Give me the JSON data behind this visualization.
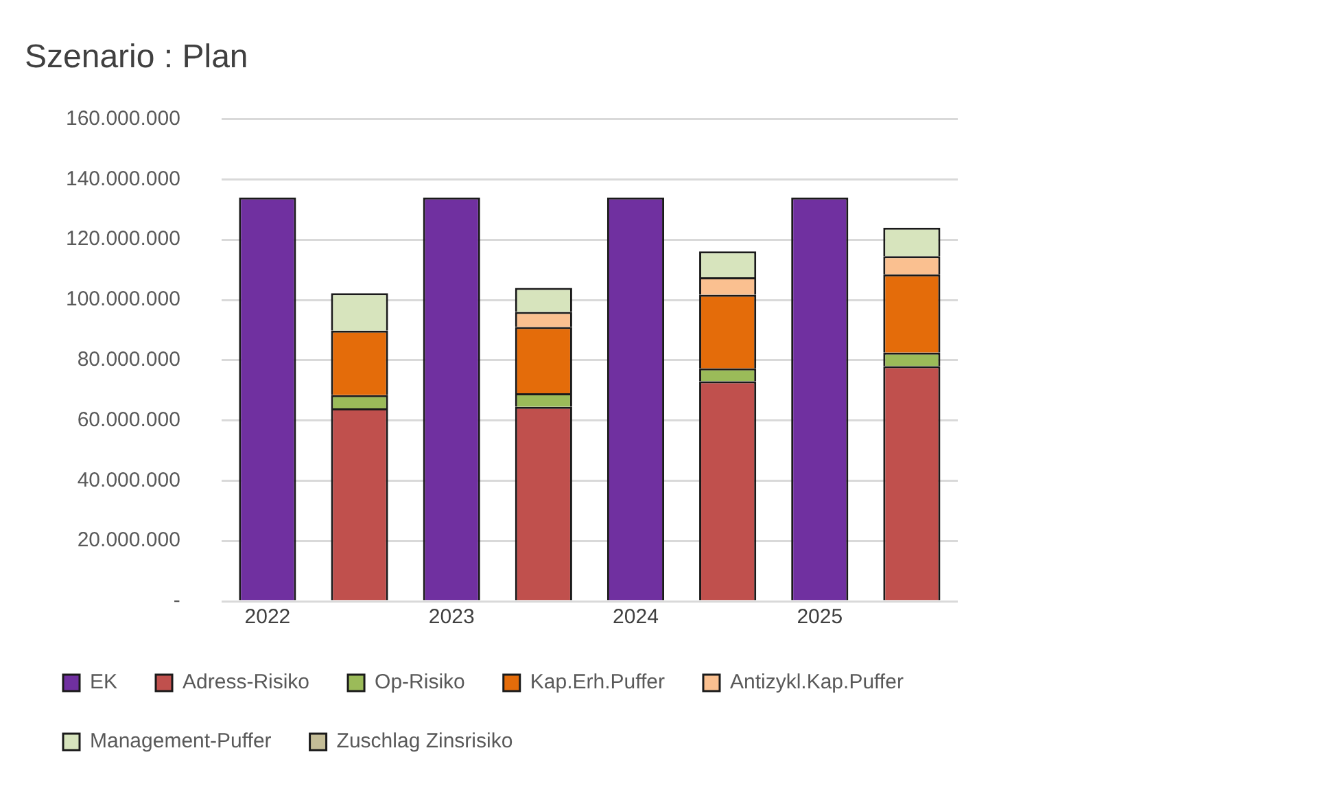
{
  "chart_data": {
    "type": "bar",
    "title": "Szenario : Plan",
    "categories": [
      "2022",
      null,
      "2023",
      null,
      "2024",
      null,
      "2025",
      null
    ],
    "stacked": true,
    "grid": "y",
    "legend": "bottom",
    "ylim": [
      0,
      160000000
    ],
    "yticks": [
      {
        "value": 0,
        "label": "-"
      },
      {
        "value": 20000000,
        "label": "20.000.000"
      },
      {
        "value": 40000000,
        "label": "40.000.000"
      },
      {
        "value": 60000000,
        "label": "60.000.000"
      },
      {
        "value": 80000000,
        "label": "80.000.000"
      },
      {
        "value": 100000000,
        "label": "100.000.000"
      },
      {
        "value": 120000000,
        "label": "120.000.000"
      },
      {
        "value": 140000000,
        "label": "140.000.000"
      },
      {
        "value": 160000000,
        "label": "160.000.000"
      }
    ],
    "series": [
      {
        "name": "EK",
        "color": "#7030a0",
        "values": [
          134000000,
          null,
          134000000,
          null,
          134000000,
          null,
          134000000,
          null
        ]
      },
      {
        "name": "Adress-Risiko",
        "color": "#c0504d",
        "values": [
          null,
          64000000,
          null,
          64500000,
          null,
          73000000,
          null,
          78000000
        ]
      },
      {
        "name": "Op-Risiko",
        "color": "#9bbb59",
        "values": [
          null,
          4400000,
          null,
          4500000,
          null,
          4300000,
          null,
          4500000
        ]
      },
      {
        "name": "Kap.Erh.Puffer",
        "color": "#e46c0a",
        "values": [
          null,
          21400000,
          null,
          22000000,
          null,
          24400000,
          null,
          26000000
        ]
      },
      {
        "name": "Antizykl.Kap.Puffer",
        "color": "#fac090",
        "values": [
          null,
          0,
          null,
          5000000,
          null,
          5800000,
          null,
          6000000
        ]
      },
      {
        "name": "Management-Puffer",
        "color": "#d7e4bd",
        "values": [
          null,
          12400000,
          null,
          8000000,
          null,
          8600000,
          null,
          9500000
        ]
      },
      {
        "name": "Zuschlag Zinsrisiko",
        "color": "#c4bd97",
        "values": [
          null,
          0,
          null,
          0,
          null,
          0,
          null,
          0
        ]
      }
    ]
  }
}
